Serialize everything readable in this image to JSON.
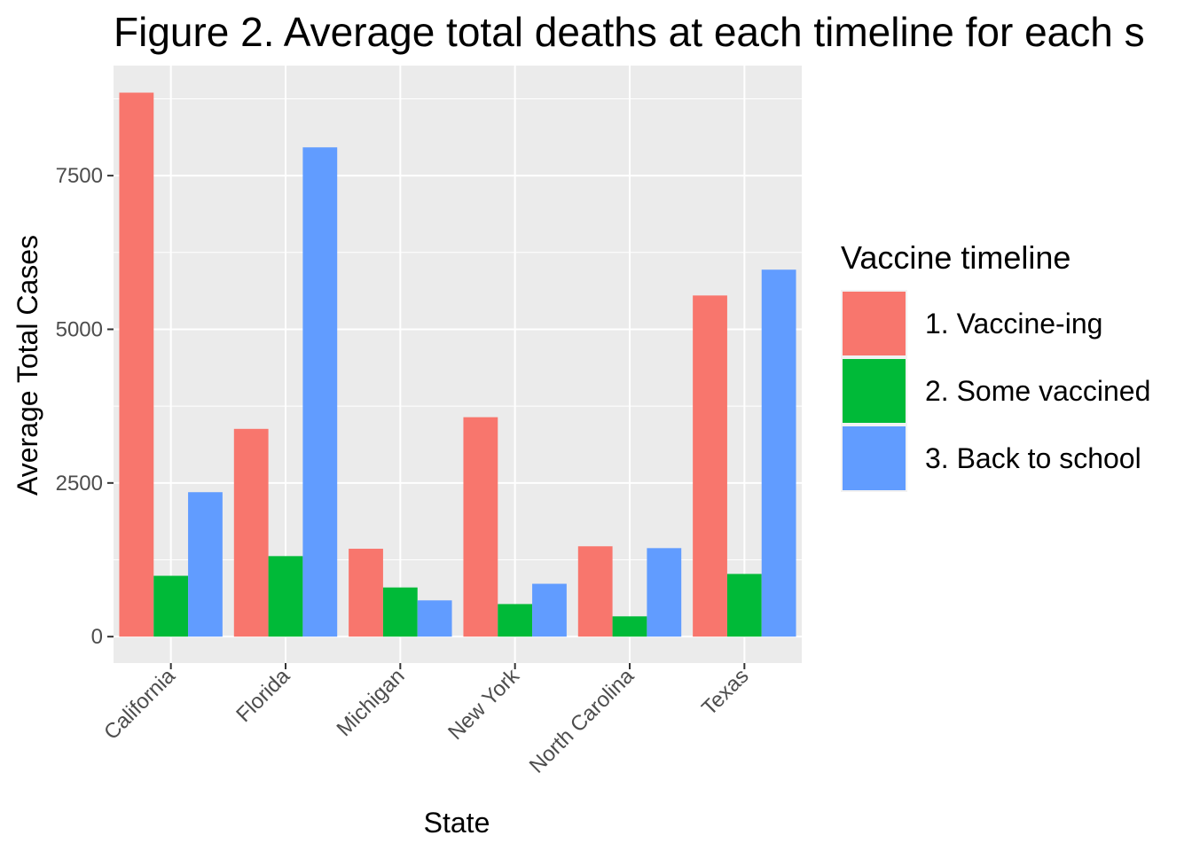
{
  "chart_data": {
    "type": "bar",
    "title": "Figure 2. Average total deaths at each timeline for each s",
    "xlabel": "State",
    "ylabel": "Average Total Cases",
    "categories": [
      "California",
      "Florida",
      "Michigan",
      "New York",
      "North Carolina",
      "Texas"
    ],
    "series": [
      {
        "name": "1. Vaccine-ing",
        "color": "#F8766D",
        "values": [
          8850,
          3380,
          1430,
          3570,
          1470,
          5550
        ]
      },
      {
        "name": "2. Some vaccined",
        "color": "#00BA38",
        "values": [
          990,
          1310,
          800,
          530,
          330,
          1020
        ]
      },
      {
        "name": "3. Back to school",
        "color": "#619CFF",
        "values": [
          2350,
          7960,
          590,
          860,
          1440,
          5970
        ]
      }
    ],
    "y_ticks": [
      0,
      2500,
      5000,
      7500
    ],
    "y_tick_labels": [
      "0",
      "2500",
      "5000",
      "7500"
    ],
    "ylim": [
      -430,
      9290
    ],
    "grid": true,
    "panel_background": "#EBEBEB",
    "legend": {
      "title": "Vaccine timeline",
      "position": "right"
    }
  }
}
